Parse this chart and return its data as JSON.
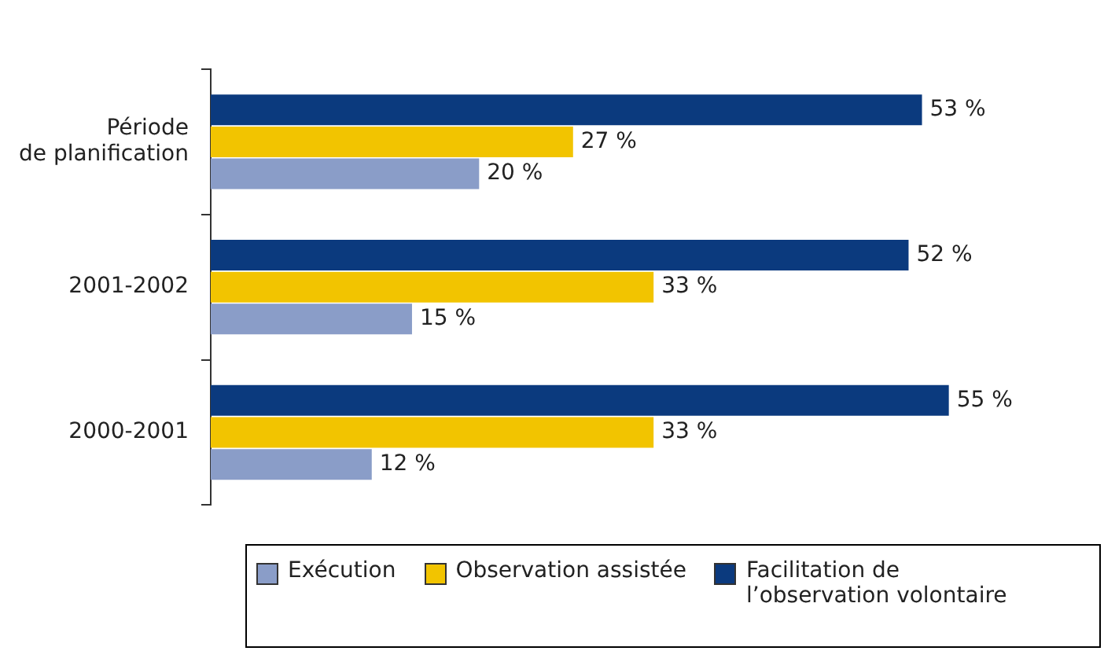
{
  "chart_data": {
    "type": "bar",
    "orientation": "horizontal",
    "categories": [
      "Période de planification",
      "2001-2002",
      "2000-2001"
    ],
    "series": [
      {
        "name": "Exécution",
        "color": "#8a9dc8",
        "values": [
          20,
          15,
          12
        ],
        "value_labels": [
          "20 %",
          "15 %",
          "12 %"
        ]
      },
      {
        "name": "Observation assistée",
        "color": "#f2c400",
        "values": [
          27,
          33,
          33
        ],
        "value_labels": [
          "27 %",
          "33 %",
          "33 %"
        ]
      },
      {
        "name": "Facilitation de l’observation volontaire",
        "color": "#0b3a7e",
        "values": [
          53,
          52,
          55
        ],
        "value_labels": [
          "53 %",
          "52 %",
          "55 %"
        ]
      }
    ],
    "tick_labels": "y",
    "legend": "bottom"
  }
}
